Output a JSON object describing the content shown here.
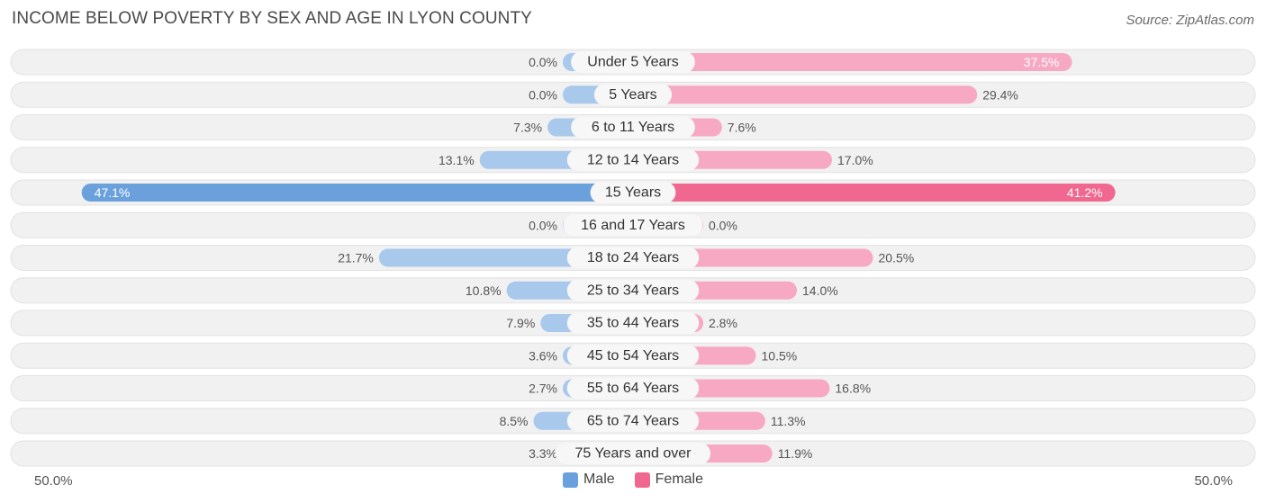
{
  "title": "INCOME BELOW POVERTY BY SEX AND AGE IN LYON COUNTY",
  "source": "Source: ZipAtlas.com",
  "colors": {
    "male": "#a8c8ec",
    "male_strong": "#6aa0dc",
    "female": "#f7a8c2",
    "female_strong": "#f06890"
  },
  "chart_data": {
    "type": "bar",
    "orientation": "horizontal-diverging",
    "categories": [
      "Under 5 Years",
      "5 Years",
      "6 to 11 Years",
      "12 to 14 Years",
      "15 Years",
      "16 and 17 Years",
      "18 to 24 Years",
      "25 to 34 Years",
      "35 to 44 Years",
      "45 to 54 Years",
      "55 to 64 Years",
      "65 to 74 Years",
      "75 Years and over"
    ],
    "series": [
      {
        "name": "Male",
        "values": [
          0.0,
          0.0,
          7.3,
          13.1,
          47.1,
          0.0,
          21.7,
          10.8,
          7.9,
          3.6,
          2.7,
          8.5,
          3.3
        ],
        "labels": [
          "0.0%",
          "0.0%",
          "7.3%",
          "13.1%",
          "47.1%",
          "0.0%",
          "21.7%",
          "10.8%",
          "7.9%",
          "3.6%",
          "2.7%",
          "8.5%",
          "3.3%"
        ]
      },
      {
        "name": "Female",
        "values": [
          37.5,
          29.4,
          7.6,
          17.0,
          41.2,
          0.0,
          20.5,
          14.0,
          2.8,
          10.5,
          16.8,
          11.3,
          11.9
        ],
        "labels": [
          "37.5%",
          "29.4%",
          "7.6%",
          "17.0%",
          "41.2%",
          "0.0%",
          "20.5%",
          "14.0%",
          "2.8%",
          "10.5%",
          "16.8%",
          "11.3%",
          "11.9%"
        ]
      }
    ],
    "xlim": [
      -50,
      50
    ],
    "axis_left_label": "50.0%",
    "axis_right_label": "50.0%",
    "legend": [
      "Male",
      "Female"
    ],
    "legend_position": "bottom-center"
  }
}
